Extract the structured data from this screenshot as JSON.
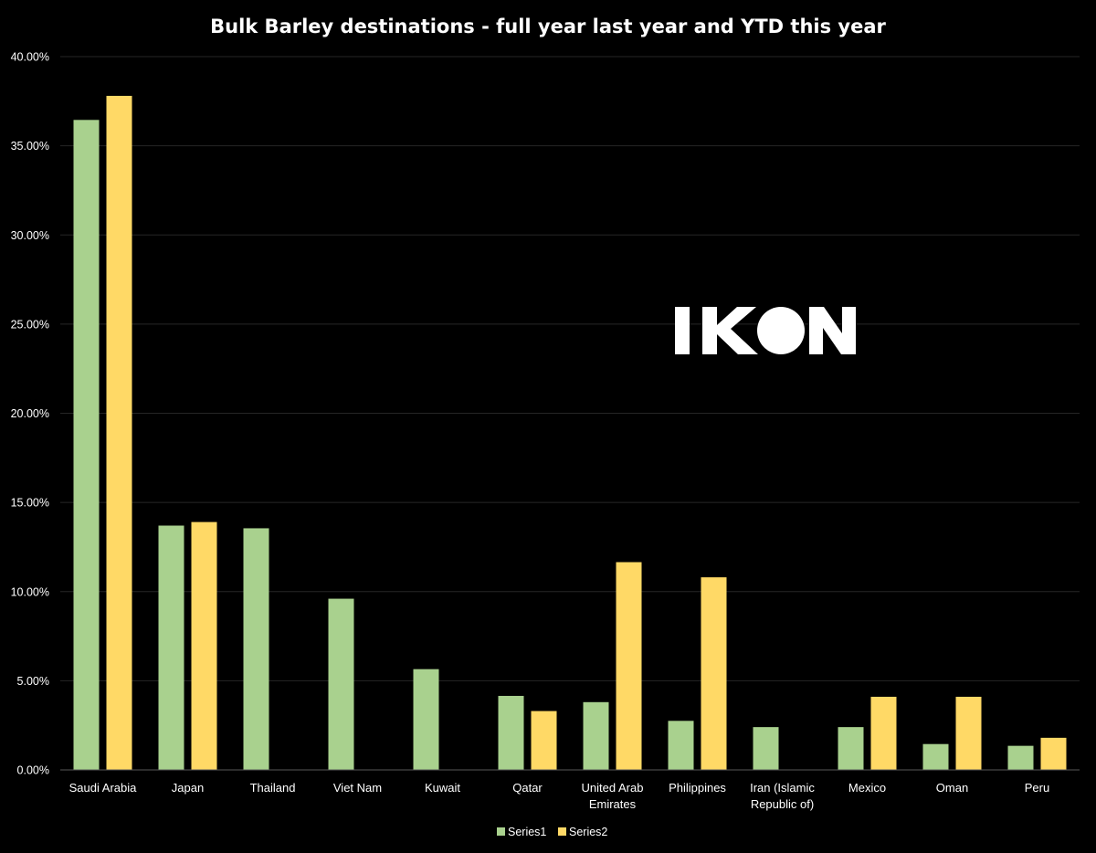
{
  "chart_data": {
    "type": "bar",
    "title": "Bulk Barley destinations - full year last year and YTD this year",
    "categories": [
      "Saudi Arabia",
      "Japan",
      "Thailand",
      "Viet Nam",
      "Kuwait",
      "Qatar",
      "United Arab Emirates",
      "Philippines",
      "Iran (Islamic Republic of)",
      "Mexico",
      "Oman",
      "Peru"
    ],
    "category_lines": [
      [
        "Saudi Arabia"
      ],
      [
        "Japan"
      ],
      [
        "Thailand"
      ],
      [
        "Viet Nam"
      ],
      [
        "Kuwait"
      ],
      [
        "Qatar"
      ],
      [
        "United Arab",
        "Emirates"
      ],
      [
        "Philippines"
      ],
      [
        "Iran (Islamic",
        "Republic of)"
      ],
      [
        "Mexico"
      ],
      [
        "Oman"
      ],
      [
        "Peru"
      ]
    ],
    "series": [
      {
        "name": "Series1",
        "color": "#a9d18e",
        "values": [
          0.3645,
          0.137,
          0.1355,
          0.096,
          0.0565,
          0.0415,
          0.038,
          0.0275,
          0.024,
          0.024,
          0.0145,
          0.0135
        ]
      },
      {
        "name": "Series2",
        "color": "#ffd966",
        "values": [
          0.378,
          0.139,
          null,
          null,
          null,
          0.033,
          0.1165,
          0.108,
          null,
          0.041,
          0.041,
          0.018
        ]
      }
    ],
    "ylim": [
      0,
      0.4
    ],
    "yticks": [
      0,
      0.05,
      0.1,
      0.15,
      0.2,
      0.25,
      0.3,
      0.35,
      0.4
    ],
    "ytick_labels": [
      "0.00%",
      "5.00%",
      "10.00%",
      "15.00%",
      "20.00%",
      "25.00%",
      "30.00%",
      "35.00%",
      "40.00%"
    ],
    "grid": true,
    "legend_position": "bottom",
    "xlabel": "",
    "ylabel": ""
  },
  "watermark": {
    "text": "IKON"
  },
  "colors": {
    "background": "#000000",
    "gridline": "#262626",
    "axis": "#595959",
    "text": "#ffffff"
  }
}
